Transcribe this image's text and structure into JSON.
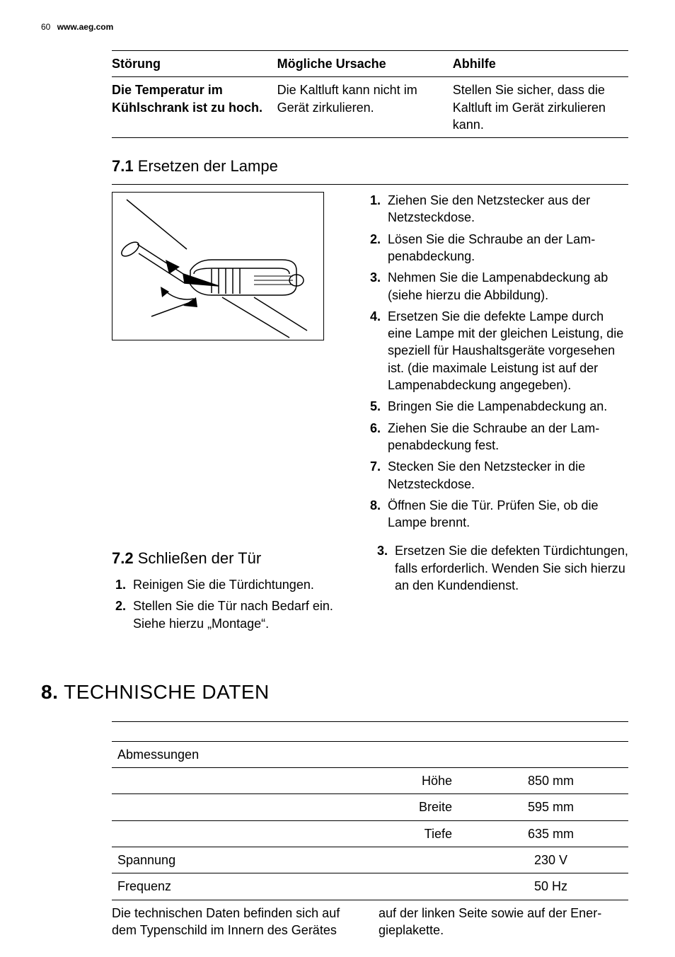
{
  "header": {
    "pageNumber": "60",
    "site": "www.aeg.com"
  },
  "troubleTable": {
    "headers": [
      "Störung",
      "Mögliche Ursache",
      "Abhilfe"
    ],
    "row": [
      "Die Temperatur im Kühlschrank ist zu hoch.",
      "Die Kaltluft kann nicht im Gerät zirkulieren.",
      "Stellen Sie sicher, dass die Kaltluft im Gerät zirkulieren kann."
    ]
  },
  "section71": {
    "number": "7.1",
    "title": "Ersetzen der Lampe",
    "steps": [
      "Ziehen Sie den Netzstecker aus der Netzsteckdose.",
      "Lösen Sie die Schraube an der Lam­penabdeckung.",
      "Nehmen Sie die Lampenabdeckung ab (siehe hierzu die Abbildung).",
      "Ersetzen Sie die defekte Lampe durch eine Lampe mit der gleichen Leistung, die speziell für Haushalts­geräte vorgesehen ist. (die maximale Leistung ist auf der Lampenabde­ckung angegeben).",
      "Bringen Sie die Lampenabdeckung an.",
      "Ziehen Sie die Schraube an der Lam­penabdeckung fest.",
      "Stecken Sie den Netzstecker in die Netzsteckdose.",
      "Öffnen Sie die Tür. Prüfen Sie, ob die Lampe brennt."
    ]
  },
  "section72": {
    "number": "7.2",
    "title": "Schließen der Tür",
    "leftSteps": [
      "Reinigen Sie die Türdichtungen.",
      "Stellen Sie die Tür nach Bedarf ein. Siehe hierzu „Montage“."
    ],
    "rightStart": 3,
    "rightSteps": [
      "Ersetzen Sie die defekten Türdich­tungen, falls erforderlich. Wenden Sie sich hierzu an den Kundendienst."
    ]
  },
  "section8": {
    "number": "8.",
    "title": "TECHNISCHE DATEN",
    "specs": {
      "dimLabel": "Abmessungen",
      "rows": [
        {
          "attr": "Höhe",
          "val": "850 mm"
        },
        {
          "attr": "Breite",
          "val": "595 mm"
        },
        {
          "attr": "Tiefe",
          "val": "635 mm"
        }
      ],
      "plain": [
        {
          "label": "Spannung",
          "val": "230 V"
        },
        {
          "label": "Frequenz",
          "val": "50 Hz"
        }
      ]
    },
    "footnote": [
      "Die technischen Daten befinden sich auf dem Typenschild im Innern des Gerätes",
      "auf der linken Seite sowie auf der Ener­gieplakette."
    ]
  }
}
